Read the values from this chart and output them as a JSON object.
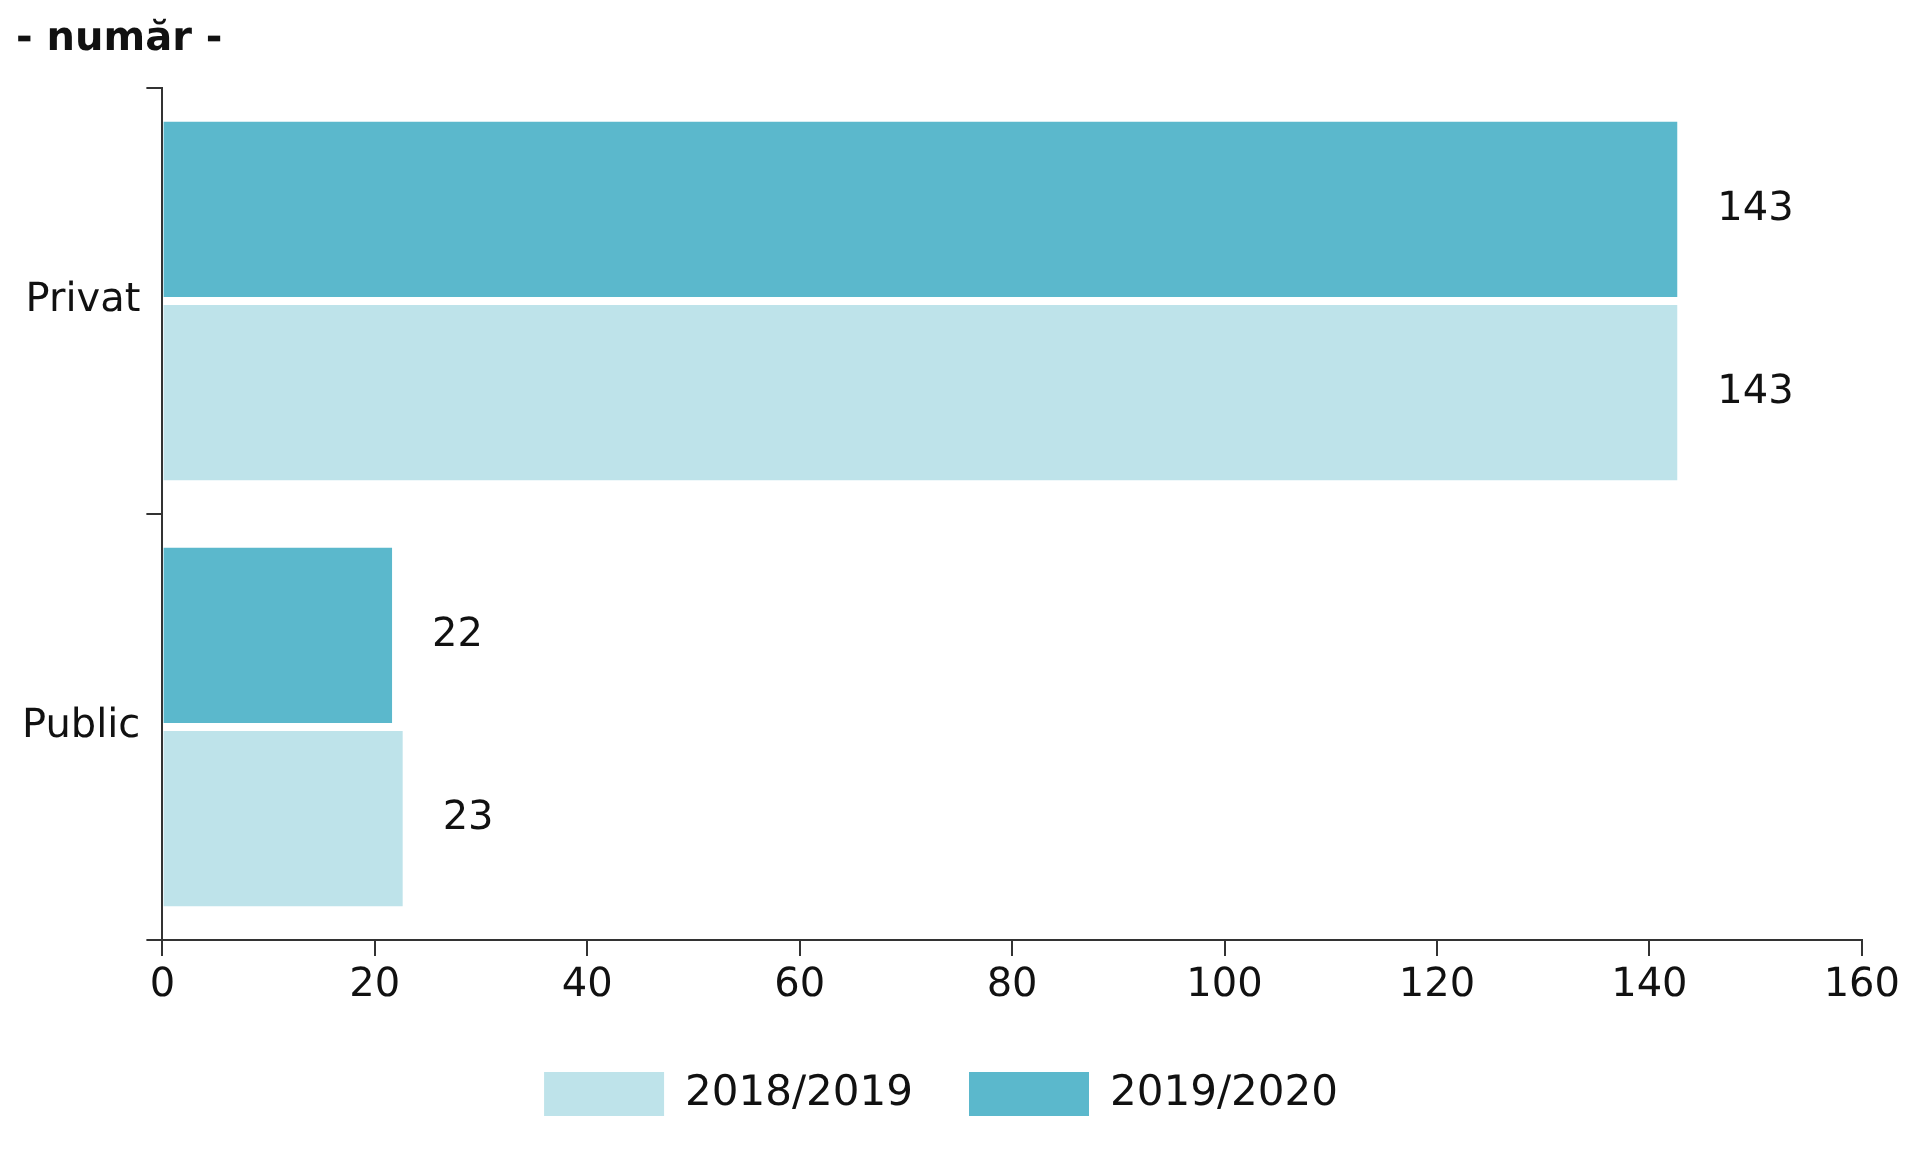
{
  "chart_data": {
    "type": "bar",
    "orientation": "horizontal",
    "title": "- număr -",
    "categories": [
      "Privat",
      "Public"
    ],
    "series": [
      {
        "name": "2019/2020",
        "color": "#5bb8cc",
        "values": [
          143,
          22
        ]
      },
      {
        "name": "2018/2019",
        "color": "#bee3ea",
        "values": [
          143,
          23
        ]
      }
    ],
    "xlim": [
      0,
      160
    ],
    "xticks": [
      0,
      20,
      40,
      60,
      80,
      100,
      120,
      140,
      160
    ],
    "grid": false,
    "legend": "bottom",
    "data_labels": true
  }
}
